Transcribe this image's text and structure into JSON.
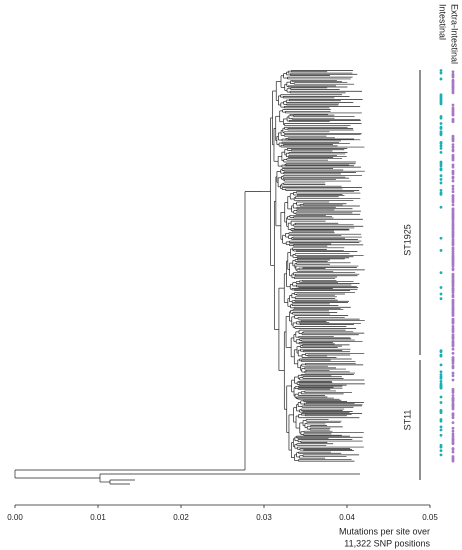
{
  "chart_data": {
    "type": "tree",
    "xlabel": [
      "Mutations per site over",
      "11,322 SNP positions"
    ],
    "xlim": [
      0,
      0.05
    ],
    "xticks": [
      {
        "value": 0,
        "label": "0.00"
      },
      {
        "value": 0.01,
        "label": "0.01"
      },
      {
        "value": 0.02,
        "label": "0.02"
      },
      {
        "value": 0.03,
        "label": "0.03"
      },
      {
        "value": 0.04,
        "label": "0.04"
      },
      {
        "value": 0.05,
        "label": "0.05"
      }
    ],
    "columns": [
      {
        "name": "Intestinal",
        "color": "#1aafb5"
      },
      {
        "name": "Extra-Intestinal",
        "color": "#a777c4"
      }
    ],
    "clades": [
      {
        "name": "ST1925"
      },
      {
        "name": "ST11"
      }
    ]
  }
}
